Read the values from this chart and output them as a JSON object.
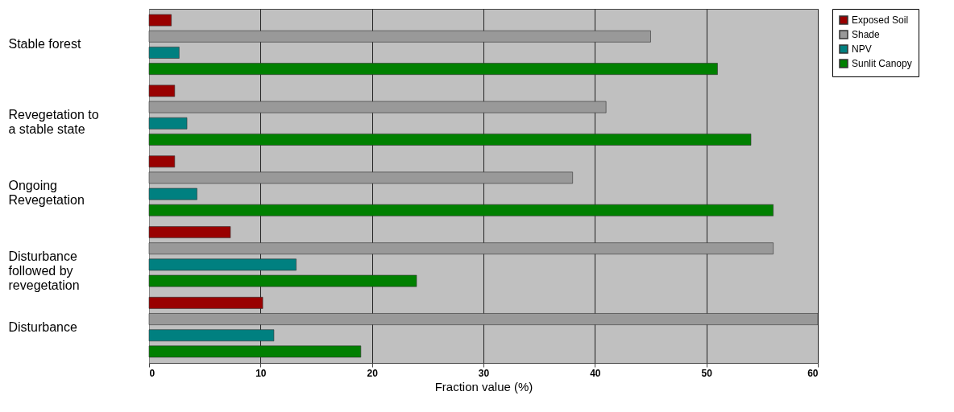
{
  "chart_data": {
    "type": "bar",
    "orientation": "horizontal",
    "xlabel": "Fraction value (%)",
    "categories": [
      "Stable forest",
      "Revegetation to a stable state",
      "Ongoing Revegetation",
      "Disturbance followed by revegetation",
      "Disturbance"
    ],
    "series": [
      {
        "name": "Exposed Soil",
        "color": "#990000",
        "values": [
          2,
          2.3,
          2.3,
          7.3,
          10.2
        ]
      },
      {
        "name": "Shade",
        "color": "#999999",
        "values": [
          45,
          41,
          38,
          56,
          60
        ]
      },
      {
        "name": "NPV",
        "color": "#008080",
        "values": [
          2.7,
          3.4,
          4.3,
          13.2,
          11.2
        ]
      },
      {
        "name": "Sunlit Canopy",
        "color": "#008000",
        "values": [
          51,
          54,
          56,
          24,
          19
        ]
      }
    ],
    "xlim": [
      0,
      60
    ],
    "xticks": [
      0,
      10,
      20,
      30,
      40,
      50,
      60
    ],
    "grid": "x",
    "legend": "right"
  }
}
